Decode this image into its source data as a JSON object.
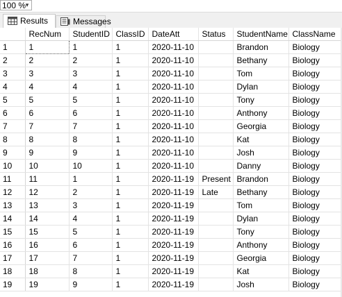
{
  "toolbar": {
    "zoom_value": "100 %"
  },
  "tabs": [
    {
      "label": "Results",
      "icon": "grid-icon"
    },
    {
      "label": "Messages",
      "icon": "messages-icon"
    }
  ],
  "grid": {
    "columns": [
      "",
      "RecNum",
      "StudentID",
      "ClassID",
      "DateAtt",
      "Status",
      "StudentName",
      "ClassName"
    ],
    "rows": [
      [
        "1",
        "1",
        "1",
        "1",
        "2020-11-10",
        "",
        "Brandon",
        "Biology"
      ],
      [
        "2",
        "2",
        "2",
        "1",
        "2020-11-10",
        "",
        "Bethany",
        "Biology"
      ],
      [
        "3",
        "3",
        "3",
        "1",
        "2020-11-10",
        "",
        "Tom",
        "Biology"
      ],
      [
        "4",
        "4",
        "4",
        "1",
        "2020-11-10",
        "",
        "Dylan",
        "Biology"
      ],
      [
        "5",
        "5",
        "5",
        "1",
        "2020-11-10",
        "",
        "Tony",
        "Biology"
      ],
      [
        "6",
        "6",
        "6",
        "1",
        "2020-11-10",
        "",
        "Anthony",
        "Biology"
      ],
      [
        "7",
        "7",
        "7",
        "1",
        "2020-11-10",
        "",
        "Georgia",
        "Biology"
      ],
      [
        "8",
        "8",
        "8",
        "1",
        "2020-11-10",
        "",
        "Kat",
        "Biology"
      ],
      [
        "9",
        "9",
        "9",
        "1",
        "2020-11-10",
        "",
        "Josh",
        "Biology"
      ],
      [
        "10",
        "10",
        "10",
        "1",
        "2020-11-10",
        "",
        "Danny",
        "Biology"
      ],
      [
        "11",
        "11",
        "1",
        "1",
        "2020-11-19",
        "Present",
        "Brandon",
        "Biology"
      ],
      [
        "12",
        "12",
        "2",
        "1",
        "2020-11-19",
        "Late",
        "Bethany",
        "Biology"
      ],
      [
        "13",
        "13",
        "3",
        "1",
        "2020-11-19",
        "",
        "Tom",
        "Biology"
      ],
      [
        "14",
        "14",
        "4",
        "1",
        "2020-11-19",
        "",
        "Dylan",
        "Biology"
      ],
      [
        "15",
        "15",
        "5",
        "1",
        "2020-11-19",
        "",
        "Tony",
        "Biology"
      ],
      [
        "16",
        "16",
        "6",
        "1",
        "2020-11-19",
        "",
        "Anthony",
        "Biology"
      ],
      [
        "17",
        "17",
        "7",
        "1",
        "2020-11-19",
        "",
        "Georgia",
        "Biology"
      ],
      [
        "18",
        "18",
        "8",
        "1",
        "2020-11-19",
        "",
        "Kat",
        "Biology"
      ],
      [
        "19",
        "19",
        "9",
        "1",
        "2020-11-19",
        "",
        "Josh",
        "Biology"
      ]
    ]
  }
}
